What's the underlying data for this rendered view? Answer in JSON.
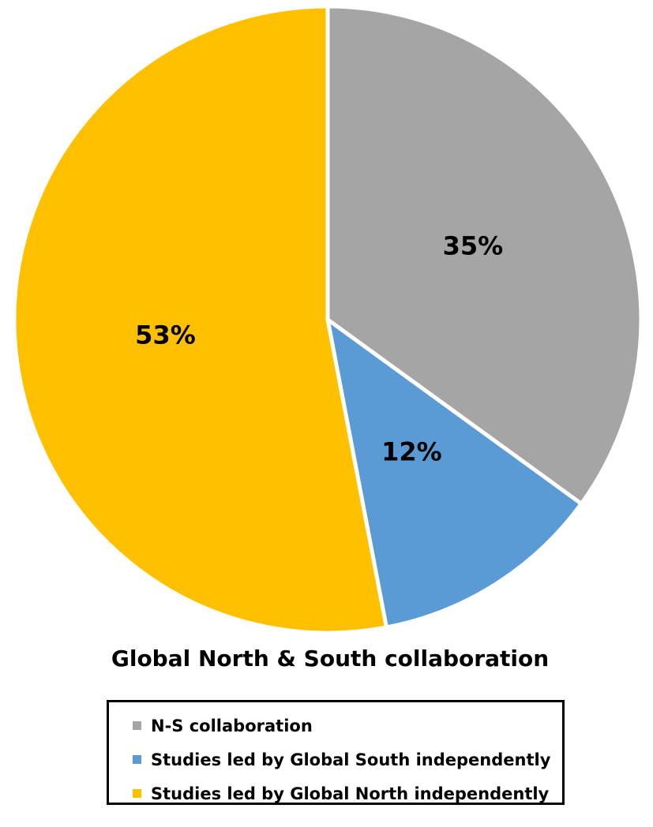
{
  "chart_data": {
    "type": "pie",
    "title": "Global North & South collaboration",
    "categories": [
      "N-S collaboration",
      "Studies led by Global South independently",
      "Studies led by Global North independently"
    ],
    "values": [
      35,
      12,
      53
    ],
    "value_labels": [
      "35%",
      "12%",
      "53%"
    ],
    "colors": [
      "#a5a5a5",
      "#5b9bd5",
      "#ffc000"
    ],
    "legend_placement": "bottom",
    "start_angle": "12 o'clock, clockwise"
  }
}
